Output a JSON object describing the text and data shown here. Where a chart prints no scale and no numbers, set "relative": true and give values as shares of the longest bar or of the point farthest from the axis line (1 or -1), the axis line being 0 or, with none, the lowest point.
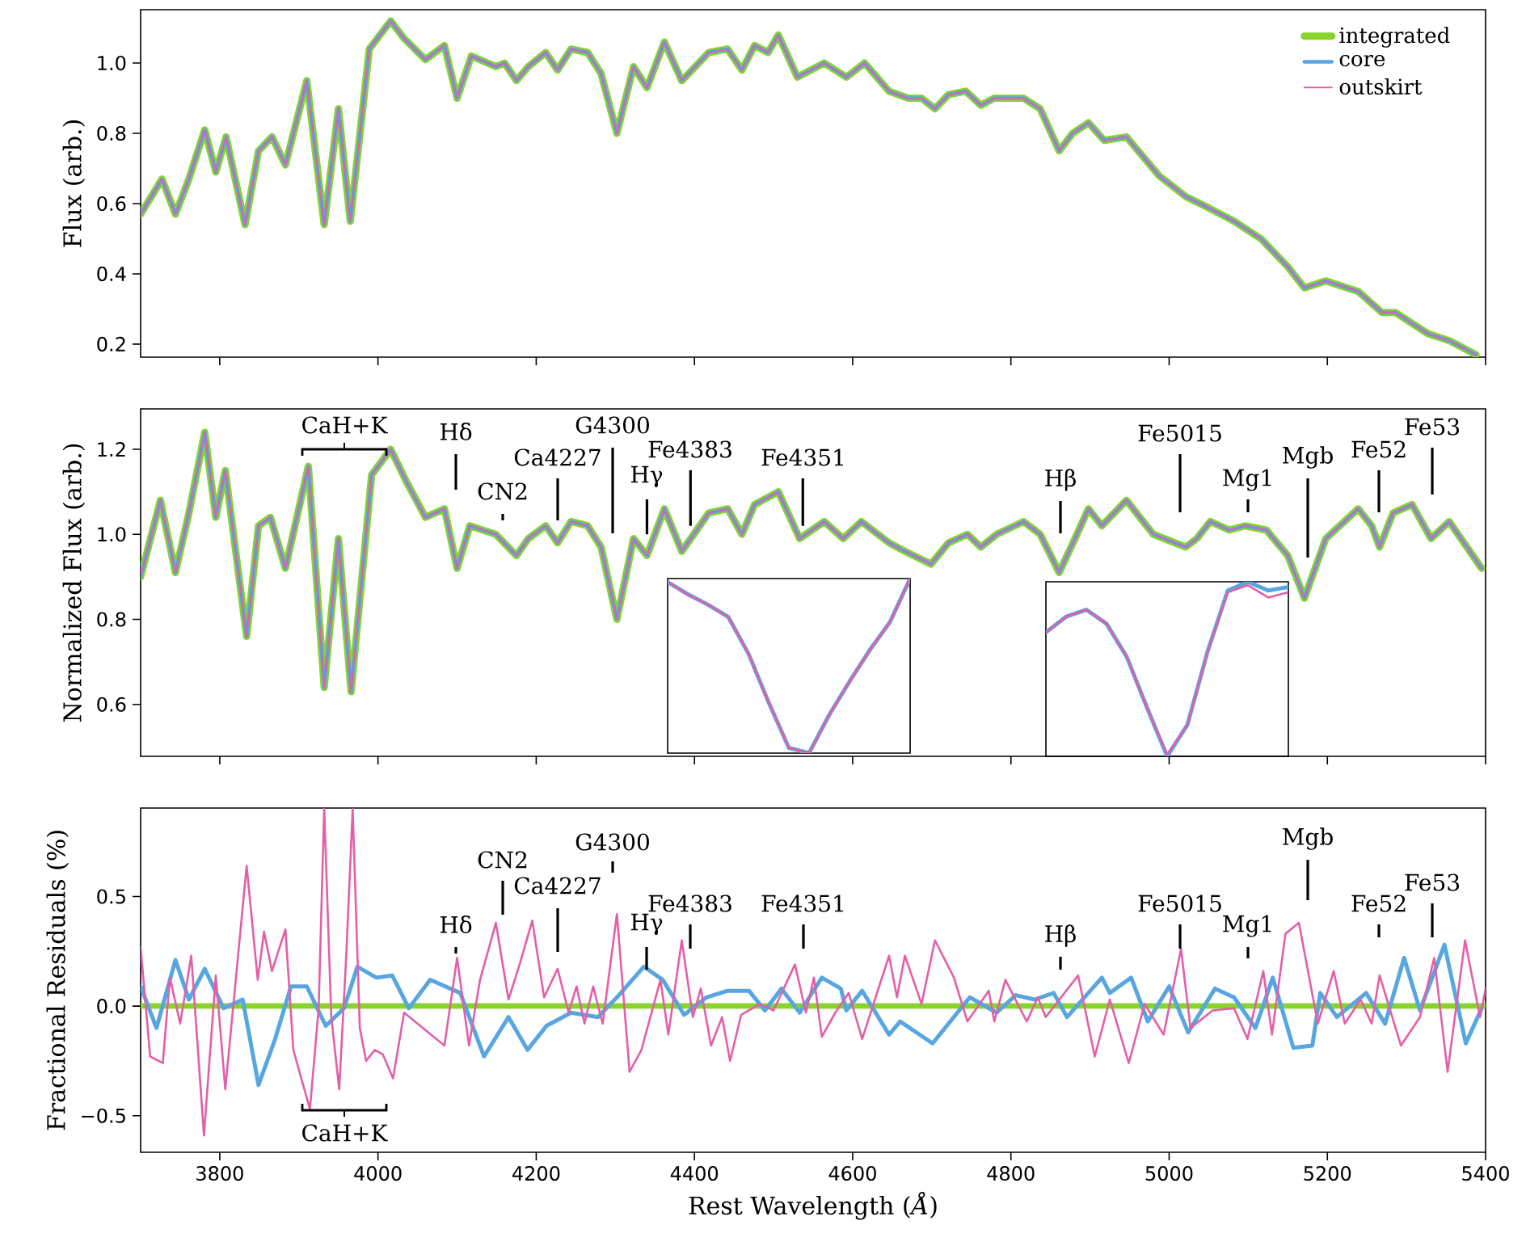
{
  "chart_data": [
    {
      "type": "line",
      "ylabel": "Flux (arb.)",
      "xlim": [
        3700,
        5400
      ],
      "ylim": [
        0.163,
        1.152
      ],
      "xticks": [
        3800,
        4000,
        4200,
        4400,
        4600,
        4800,
        5000,
        5200,
        5400
      ],
      "yticks": [
        0.2,
        0.4,
        0.6,
        0.8,
        {
          "value": 1,
          "label": "1.0"
        }
      ],
      "tick_labels": "y",
      "legend": "top right",
      "x": [
        3700,
        3727,
        3744,
        3761,
        3781,
        3795,
        3808,
        3832,
        3849,
        3866,
        3883,
        3910,
        3932,
        3950,
        3965,
        3989,
        4016,
        4033,
        4060,
        4084,
        4100,
        4118,
        4149,
        4160,
        4175,
        4190,
        4212,
        4227,
        4244,
        4265,
        4282,
        4302,
        4323,
        4340,
        4362,
        4384,
        4418,
        4442,
        4460,
        4476,
        4493,
        4506,
        4530,
        4564,
        4592,
        4615,
        4646,
        4670,
        4687,
        4704,
        4721,
        4743,
        4762,
        4779,
        4816,
        4837,
        4861,
        4878,
        4898,
        4918,
        4946,
        4987,
        5021,
        5048,
        5082,
        5116,
        5150,
        5171,
        5198,
        5239,
        5269,
        5286,
        5327,
        5354,
        5388
      ],
      "series": [
        {
          "name": "integrated",
          "color": "#88d42a",
          "values": [
            0.57,
            0.67,
            0.57,
            0.67,
            0.81,
            0.69,
            0.79,
            0.54,
            0.75,
            0.79,
            0.71,
            0.95,
            0.54,
            0.87,
            0.55,
            1.04,
            1.12,
            1.07,
            1.01,
            1.05,
            0.9,
            1.02,
            0.99,
            1.0,
            0.95,
            0.99,
            1.03,
            0.98,
            1.04,
            1.03,
            0.97,
            0.8,
            0.99,
            0.93,
            1.06,
            0.95,
            1.03,
            1.04,
            0.98,
            1.05,
            1.03,
            1.08,
            0.96,
            1.0,
            0.96,
            1.0,
            0.92,
            0.9,
            0.9,
            0.87,
            0.91,
            0.92,
            0.88,
            0.9,
            0.9,
            0.87,
            0.75,
            0.8,
            0.83,
            0.78,
            0.79,
            0.68,
            0.62,
            0.59,
            0.55,
            0.5,
            0.42,
            0.36,
            0.38,
            0.35,
            0.29,
            0.29,
            0.23,
            0.21,
            0.17
          ]
        },
        {
          "name": "core",
          "color": "#58a6e0",
          "values": [
            0.57,
            0.67,
            0.57,
            0.67,
            0.81,
            0.69,
            0.79,
            0.54,
            0.75,
            0.79,
            0.71,
            0.95,
            0.54,
            0.87,
            0.55,
            1.04,
            1.12,
            1.07,
            1.01,
            1.05,
            0.9,
            1.02,
            0.99,
            1.0,
            0.95,
            0.99,
            1.03,
            0.98,
            1.04,
            1.03,
            0.97,
            0.8,
            0.99,
            0.93,
            1.06,
            0.95,
            1.03,
            1.04,
            0.98,
            1.05,
            1.03,
            1.08,
            0.96,
            1.0,
            0.96,
            1.0,
            0.92,
            0.9,
            0.9,
            0.87,
            0.91,
            0.92,
            0.88,
            0.9,
            0.9,
            0.87,
            0.75,
            0.8,
            0.83,
            0.78,
            0.79,
            0.68,
            0.62,
            0.59,
            0.55,
            0.5,
            0.42,
            0.36,
            0.38,
            0.35,
            0.29,
            0.29,
            0.23,
            0.21,
            0.17
          ]
        },
        {
          "name": "outskirt",
          "color": "#e35fa8",
          "values": [
            0.57,
            0.67,
            0.57,
            0.67,
            0.81,
            0.69,
            0.79,
            0.54,
            0.75,
            0.79,
            0.71,
            0.95,
            0.54,
            0.87,
            0.55,
            1.04,
            1.12,
            1.07,
            1.01,
            1.05,
            0.9,
            1.02,
            0.99,
            1.0,
            0.95,
            0.99,
            1.03,
            0.98,
            1.04,
            1.03,
            0.97,
            0.8,
            0.99,
            0.93,
            1.06,
            0.95,
            1.03,
            1.04,
            0.98,
            1.05,
            1.03,
            1.08,
            0.96,
            1.0,
            0.96,
            1.0,
            0.92,
            0.9,
            0.9,
            0.87,
            0.91,
            0.92,
            0.88,
            0.9,
            0.9,
            0.87,
            0.75,
            0.8,
            0.83,
            0.78,
            0.79,
            0.68,
            0.62,
            0.59,
            0.55,
            0.5,
            0.42,
            0.36,
            0.38,
            0.35,
            0.29,
            0.29,
            0.23,
            0.21,
            0.17
          ]
        }
      ]
    },
    {
      "type": "line",
      "ylabel": "Normalized Flux (arb.)",
      "xlim": [
        3700,
        5400
      ],
      "ylim": [
        0.478,
        1.295
      ],
      "xticks": [
        3800,
        4000,
        4200,
        4400,
        4600,
        4800,
        5000,
        5200,
        5400
      ],
      "yticks": [
        0.6,
        0.8,
        {
          "value": 1,
          "label": "1.0"
        },
        1.2
      ],
      "tick_labels": "y",
      "x": [
        3700,
        3725,
        3744,
        3761,
        3781,
        3795,
        3807,
        3834,
        3849,
        3864,
        3883,
        3912,
        3932,
        3950,
        3966,
        3992,
        4016,
        4037,
        4060,
        4084,
        4100,
        4116,
        4149,
        4175,
        4190,
        4212,
        4227,
        4244,
        4265,
        4282,
        4302,
        4323,
        4340,
        4362,
        4384,
        4418,
        4442,
        4460,
        4476,
        4506,
        4533,
        4564,
        4588,
        4611,
        4646,
        4666,
        4699,
        4721,
        4745,
        4762,
        4782,
        4816,
        4837,
        4861,
        4881,
        4898,
        4915,
        4946,
        4980,
        5021,
        5035,
        5052,
        5076,
        5096,
        5123,
        5150,
        5171,
        5198,
        5239,
        5256,
        5266,
        5283,
        5307,
        5331,
        5354,
        5395
      ],
      "series": [
        {
          "color": "#88d42a",
          "values": [
            0.9,
            1.08,
            0.91,
            1.05,
            1.24,
            1.04,
            1.15,
            0.76,
            1.02,
            1.04,
            0.92,
            1.16,
            0.64,
            0.99,
            0.63,
            1.14,
            1.2,
            1.12,
            1.04,
            1.06,
            0.92,
            1.02,
            1.0,
            0.95,
            0.99,
            1.02,
            0.98,
            1.03,
            1.02,
            0.97,
            0.8,
            0.99,
            0.95,
            1.06,
            0.96,
            1.05,
            1.06,
            1.0,
            1.07,
            1.1,
            0.99,
            1.03,
            0.99,
            1.03,
            0.98,
            0.96,
            0.93,
            0.98,
            1.0,
            0.97,
            1.0,
            1.03,
            1.0,
            0.91,
            0.99,
            1.06,
            1.02,
            1.08,
            1.0,
            0.97,
            0.99,
            1.03,
            1.01,
            1.02,
            1.01,
            0.95,
            0.85,
            0.99,
            1.06,
            1.02,
            0.97,
            1.05,
            1.07,
            0.99,
            1.03,
            0.92
          ]
        },
        {
          "color": "#58a6e0",
          "values": [
            0.9,
            1.08,
            0.91,
            1.05,
            1.24,
            1.04,
            1.15,
            0.76,
            1.02,
            1.04,
            0.92,
            1.16,
            0.64,
            0.99,
            0.63,
            1.14,
            1.2,
            1.12,
            1.04,
            1.06,
            0.92,
            1.02,
            1.0,
            0.95,
            0.99,
            1.02,
            0.98,
            1.03,
            1.02,
            0.97,
            0.8,
            0.99,
            0.95,
            1.06,
            0.96,
            1.05,
            1.06,
            1.0,
            1.07,
            1.1,
            0.99,
            1.03,
            0.99,
            1.03,
            0.98,
            0.96,
            0.93,
            0.98,
            1.0,
            0.97,
            1.0,
            1.03,
            1.0,
            0.91,
            0.99,
            1.06,
            1.02,
            1.08,
            1.0,
            0.97,
            0.99,
            1.03,
            1.01,
            1.02,
            1.01,
            0.95,
            0.85,
            0.99,
            1.06,
            1.02,
            0.97,
            1.05,
            1.07,
            0.99,
            1.03,
            0.92
          ]
        },
        {
          "color": "#e35fa8",
          "values": [
            0.9,
            1.08,
            0.91,
            1.05,
            1.24,
            1.04,
            1.15,
            0.76,
            1.02,
            1.04,
            0.92,
            1.16,
            0.64,
            0.99,
            0.63,
            1.14,
            1.2,
            1.12,
            1.04,
            1.06,
            0.92,
            1.02,
            1.0,
            0.95,
            0.99,
            1.02,
            0.98,
            1.03,
            1.02,
            0.97,
            0.8,
            0.99,
            0.95,
            1.06,
            0.96,
            1.05,
            1.06,
            1.0,
            1.07,
            1.1,
            0.99,
            1.03,
            0.99,
            1.03,
            0.98,
            0.96,
            0.93,
            0.98,
            1.0,
            0.97,
            1.0,
            1.03,
            1.0,
            0.91,
            0.99,
            1.06,
            1.02,
            1.08,
            1.0,
            0.97,
            0.99,
            1.03,
            1.01,
            1.02,
            1.01,
            0.95,
            0.85,
            0.99,
            1.06,
            1.02,
            0.97,
            1.05,
            1.07,
            0.99,
            1.03,
            0.92
          ]
        }
      ],
      "annotations": [
        "CaH+K",
        "Hδ",
        "CN2",
        "Ca4227",
        "G4300",
        {
          "text": "Hγ",
          "x": 4340,
          "y": 1.0
        },
        {
          "text": "Fe4383",
          "x": 4395,
          "y": 1.02
        },
        {
          "text": "Fe4351",
          "x": 4537,
          "y": 1.02
        },
        "Hβ",
        "Fe5015",
        "Mg1",
        "Mgb",
        "Fe52",
        "Fe53"
      ]
    },
    {
      "type": "line",
      "xlabel": "Rest Wavelength (*Å*)",
      "ylabel": "Fractional Residuals (%)",
      "xlim": [
        3700,
        5400
      ],
      "ylim": [
        -0.667,
        0.904
      ],
      "xticks": [
        3800,
        4000,
        4200,
        4400,
        4600,
        4800,
        5000,
        5200,
        5400
      ],
      "yticks": [
        {
          "value": -0.5,
          "label": "−0.5"
        },
        {
          "value": 0,
          "label": "0.0"
        },
        0.5
      ],
      "series": [
        {
          "color": "#88d42a",
          "x": [
            3700,
            5400
          ],
          "values": [
            0,
            0
          ]
        },
        {
          "color": "#58a6e0",
          "x": [
            3700,
            3720,
            3744,
            3761,
            3781,
            3805,
            3829,
            3849,
            3870,
            3890,
            3910,
            3934,
            3957,
            3974,
            3998,
            4018,
            4039,
            4066,
            4104,
            4134,
            4165,
            4189,
            4213,
            4244,
            4278,
            4302,
            4336,
            4360,
            4387,
            4415,
            4442,
            4469,
            4489,
            4510,
            4533,
            4561,
            4585,
            4592,
            4612,
            4646,
            4660,
            4701,
            4748,
            4782,
            4806,
            4830,
            4854,
            4871,
            4915,
            4925,
            4952,
            4973,
            5000,
            5024,
            5058,
            5082,
            5109,
            5131,
            5157,
            5181,
            5191,
            5212,
            5249,
            5273,
            5297,
            5317,
            5348,
            5375,
            5395
          ],
          "values": [
            0.09,
            -0.1,
            0.21,
            0.03,
            0.17,
            -0.01,
            0.03,
            -0.36,
            -0.15,
            0.09,
            0.09,
            -0.09,
            -0.01,
            0.18,
            0.13,
            0.14,
            -0.01,
            0.12,
            0.06,
            -0.23,
            -0.05,
            -0.2,
            -0.09,
            -0.03,
            -0.05,
            0.04,
            0.18,
            0.12,
            -0.04,
            0.04,
            0.07,
            0.07,
            -0.02,
            0.08,
            -0.03,
            0.13,
            0.08,
            -0.02,
            0.07,
            -0.13,
            -0.07,
            -0.17,
            0.04,
            -0.03,
            0.05,
            0.03,
            0.06,
            -0.05,
            0.13,
            0.06,
            0.13,
            -0.07,
            0.09,
            -0.12,
            0.08,
            0.04,
            -0.1,
            0.13,
            -0.19,
            -0.18,
            0.06,
            -0.05,
            0.06,
            -0.08,
            0.22,
            -0.02,
            0.28,
            -0.17,
            -0.01
          ]
        },
        {
          "color": "#e35fa8",
          "x": [
            3700,
            3712,
            3728,
            3737,
            3750,
            3764,
            3780,
            3795,
            3807,
            3834,
            3848,
            3856,
            3866,
            3883,
            3893,
            3914,
            3925,
            3932,
            3941,
            3951,
            3960,
            3968,
            3977,
            3985,
            3996,
            4006,
            4019,
            4033,
            4084,
            4100,
            4115,
            4129,
            4149,
            4165,
            4179,
            4195,
            4210,
            4227,
            4241,
            4251,
            4261,
            4272,
            4284,
            4302,
            4318,
            4333,
            4357,
            4367,
            4384,
            4398,
            4408,
            4421,
            4435,
            4445,
            4459,
            4483,
            4500,
            4527,
            4541,
            4551,
            4561,
            4578,
            4595,
            4612,
            4646,
            4656,
            4666,
            4687,
            4704,
            4728,
            4745,
            4772,
            4779,
            4793,
            4820,
            4834,
            4844,
            4885,
            4906,
            4925,
            4949,
            4969,
            4993,
            5015,
            5027,
            5055,
            5082,
            5099,
            5119,
            5130,
            5147,
            5164,
            5188,
            5208,
            5222,
            5242,
            5256,
            5266,
            5293,
            5317,
            5335,
            5352,
            5374,
            5393,
            5400
          ],
          "values": [
            0.27,
            -0.23,
            -0.26,
            0.13,
            -0.08,
            0.23,
            -0.59,
            0.14,
            -0.38,
            0.64,
            0.12,
            0.34,
            0.16,
            0.35,
            -0.2,
            -0.47,
            -0.01,
            0.9,
            -0.05,
            -0.38,
            0.24,
            0.9,
            -0.1,
            -0.25,
            -0.2,
            -0.22,
            -0.33,
            -0.03,
            -0.18,
            0.22,
            -0.18,
            0.12,
            0.38,
            0.03,
            0.19,
            0.39,
            0.04,
            0.17,
            -0.03,
            0.09,
            -0.08,
            0.09,
            -0.08,
            0.42,
            -0.3,
            -0.2,
            0.12,
            -0.13,
            0.3,
            -0.05,
            0.08,
            -0.18,
            -0.05,
            -0.25,
            -0.04,
            0.01,
            -0.02,
            0.19,
            -0.03,
            0.13,
            -0.14,
            -0.03,
            0.06,
            -0.15,
            0.23,
            0.04,
            0.23,
            0.01,
            0.3,
            0.13,
            -0.07,
            0.07,
            -0.07,
            0.12,
            -0.07,
            0.04,
            -0.05,
            0.14,
            -0.23,
            0.03,
            -0.26,
            0.01,
            -0.13,
            0.26,
            -0.1,
            -0.02,
            -0.01,
            -0.15,
            0.16,
            -0.13,
            0.33,
            0.38,
            -0.08,
            0.16,
            -0.08,
            0.03,
            -0.08,
            0.14,
            -0.18,
            -0.05,
            0.22,
            -0.3,
            0.3,
            -0.05,
            0.08
          ]
        }
      ],
      "annotations": [
        "CaH+K",
        "Hδ",
        "CN2",
        "Ca4227",
        "G4300",
        "Hγ",
        "Fe4383",
        "Fe4351",
        "Hβ",
        "Fe5015",
        "Mg1",
        "Mgb",
        "Fe52",
        "Fe53"
      ]
    },
    {
      "type": "line",
      "relative": true,
      "tick_labels": false,
      "categories": [
        null,
        null,
        null,
        null,
        null,
        null,
        null,
        null,
        null,
        null,
        null,
        null,
        null
      ],
      "series": [
        {
          "color": "#58a6e0",
          "values": [
            0.98,
            0.91,
            0.85,
            0.78,
            0.57,
            0.29,
            0.03,
            0,
            0.22,
            0.41,
            0.59,
            0.75,
            1
          ]
        },
        {
          "color": "#e35fa8",
          "values": [
            0.98,
            0.91,
            0.85,
            0.78,
            0.57,
            0.29,
            0.03,
            0,
            0.22,
            0.41,
            0.59,
            0.75,
            1
          ]
        }
      ]
    },
    {
      "type": "line",
      "relative": true,
      "tick_labels": false,
      "categories": [
        null,
        null,
        null,
        null,
        null,
        null,
        null,
        null,
        null,
        null,
        null,
        null,
        null
      ],
      "series": [
        {
          "color": "#58a6e0",
          "values": [
            0.71,
            0.8,
            0.84,
            0.76,
            0.57,
            0.28,
            0,
            0.18,
            0.6,
            0.95,
            1,
            0.95,
            0.97
          ]
        },
        {
          "color": "#e35fa8",
          "values": [
            0.71,
            0.8,
            0.84,
            0.76,
            0.57,
            0.28,
            0.01,
            0.18,
            0.6,
            0.94,
            0.98,
            0.91,
            0.94
          ]
        }
      ]
    }
  ]
}
